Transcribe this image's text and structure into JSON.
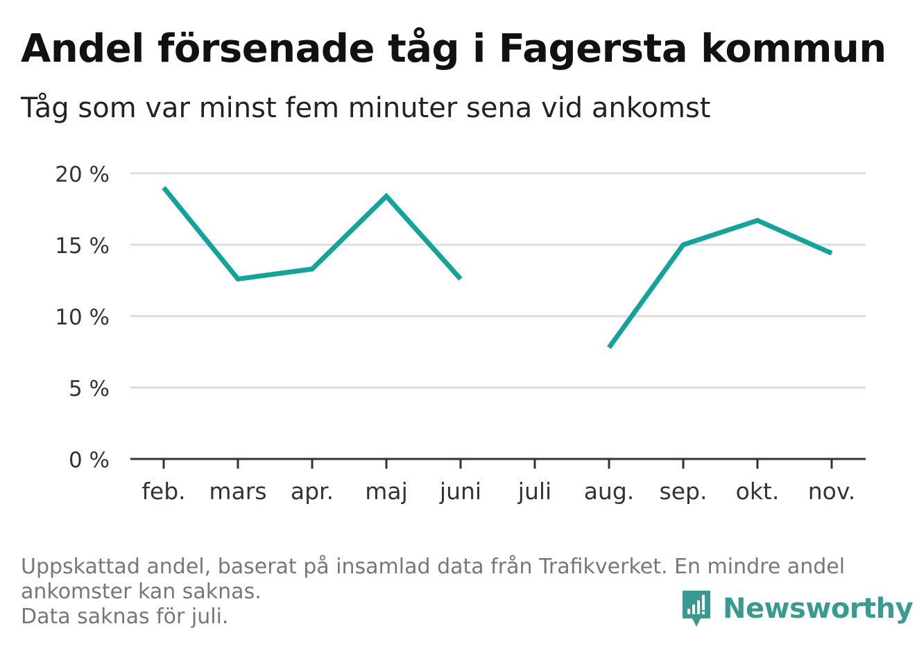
{
  "title": "Andel försenade tåg i Fagersta kommun",
  "subtitle": "Tåg som var minst fem minuter sena vid ankomst",
  "footnote": {
    "line1": "Uppskattad andel, baserat på insamlad data från Trafikverket. En mindre andel",
    "line2": "ankomster kan saknas.",
    "line3": "Data saknas för juli."
  },
  "brand": {
    "name": "Newsworthy",
    "icon": "newsworthy-logo-icon",
    "color": "#3a9a90"
  },
  "colors": {
    "line": "#14a39a",
    "grid": "#dddddd",
    "axis": "#333333",
    "text": "#333333"
  },
  "chart_data": {
    "type": "line",
    "title": "Andel försenade tåg i Fagersta kommun",
    "subtitle": "Tåg som var minst fem minuter sena vid ankomst",
    "categories": [
      "feb.",
      "mars",
      "apr.",
      "maj",
      "juni",
      "juli",
      "aug.",
      "sep.",
      "okt.",
      "nov."
    ],
    "series": [
      {
        "values": [
          19.0,
          12.6,
          13.3,
          18.4,
          12.6,
          null,
          7.8,
          15.0,
          16.7,
          14.4
        ]
      }
    ],
    "ylim": [
      0,
      20
    ],
    "yticks": [
      0,
      5,
      10,
      15,
      20
    ],
    "ytick_labels": [
      "0 %",
      "5 %",
      "10 %",
      "15 %",
      "20 %"
    ],
    "grid": true,
    "legend": "none"
  }
}
